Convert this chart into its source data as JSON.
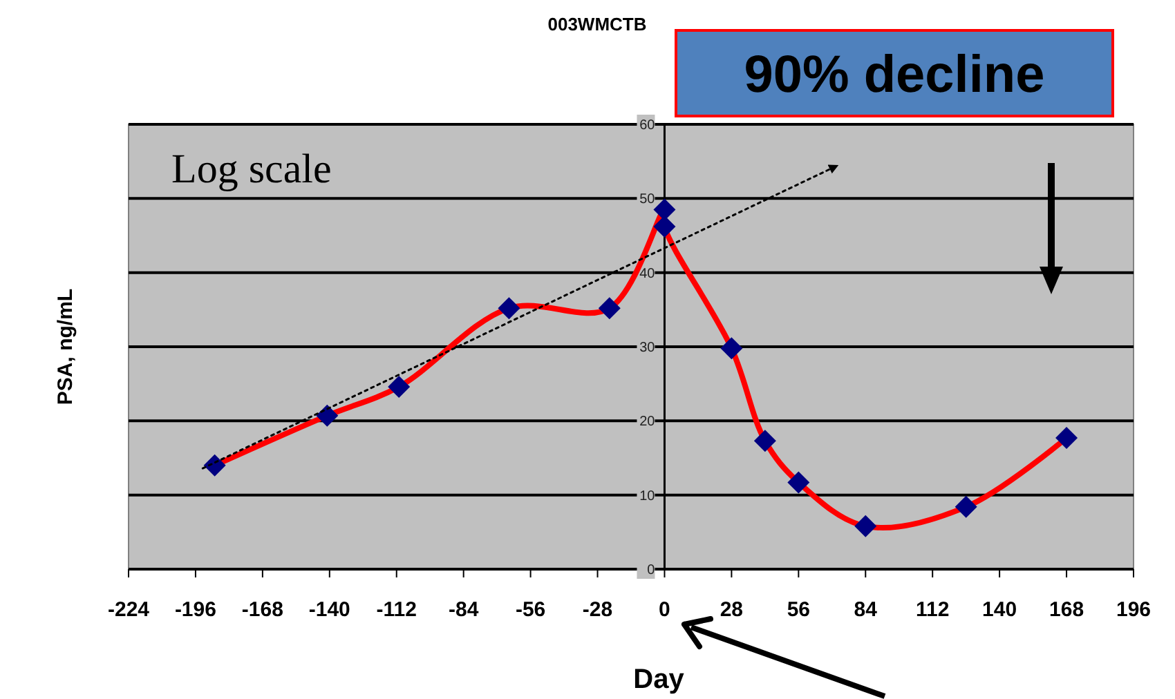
{
  "chart_data": {
    "type": "line",
    "title": "003WMCTB",
    "xlabel": "Day",
    "ylabel": "PSA, ng/mL",
    "annotations": [
      "Log scale",
      "90% decline"
    ],
    "xlim": [
      -224,
      196
    ],
    "xticks": [
      -224,
      -196,
      -168,
      -140,
      -112,
      -84,
      -56,
      -28,
      0,
      28,
      56,
      84,
      112,
      140,
      168,
      196
    ],
    "ylim": [
      0,
      60
    ],
    "yticks": [
      0,
      10,
      20,
      30,
      40,
      50,
      60
    ],
    "grid": "y",
    "series": [
      {
        "color": "#ff0000",
        "marker": "none",
        "line_style": "solid",
        "x": [
          -188,
          -141,
          -111,
          -65,
          -23,
          0,
          0,
          28,
          42,
          56,
          84,
          126,
          168
        ],
        "values": [
          14,
          20.7,
          24.6,
          35.2,
          35.2,
          48.5,
          46.2,
          29.8,
          17.3,
          11.7,
          5.8,
          8.4,
          17.7
        ]
      },
      {
        "type": "scatter",
        "color": "#000080",
        "marker": "diamond",
        "x": [
          -188,
          -141,
          -111,
          -65,
          -23,
          0,
          0,
          28,
          42,
          56,
          84,
          126,
          168
        ],
        "values": [
          14,
          20.7,
          24.6,
          35.2,
          35.2,
          48.5,
          46.2,
          29.8,
          17.3,
          11.7,
          5.8,
          8.4,
          17.7
        ]
      },
      {
        "color": "#000000",
        "marker": "none",
        "line_style": "dotted",
        "x": [
          -193,
          72
        ],
        "values": [
          13.6,
          54.4
        ]
      }
    ]
  }
}
